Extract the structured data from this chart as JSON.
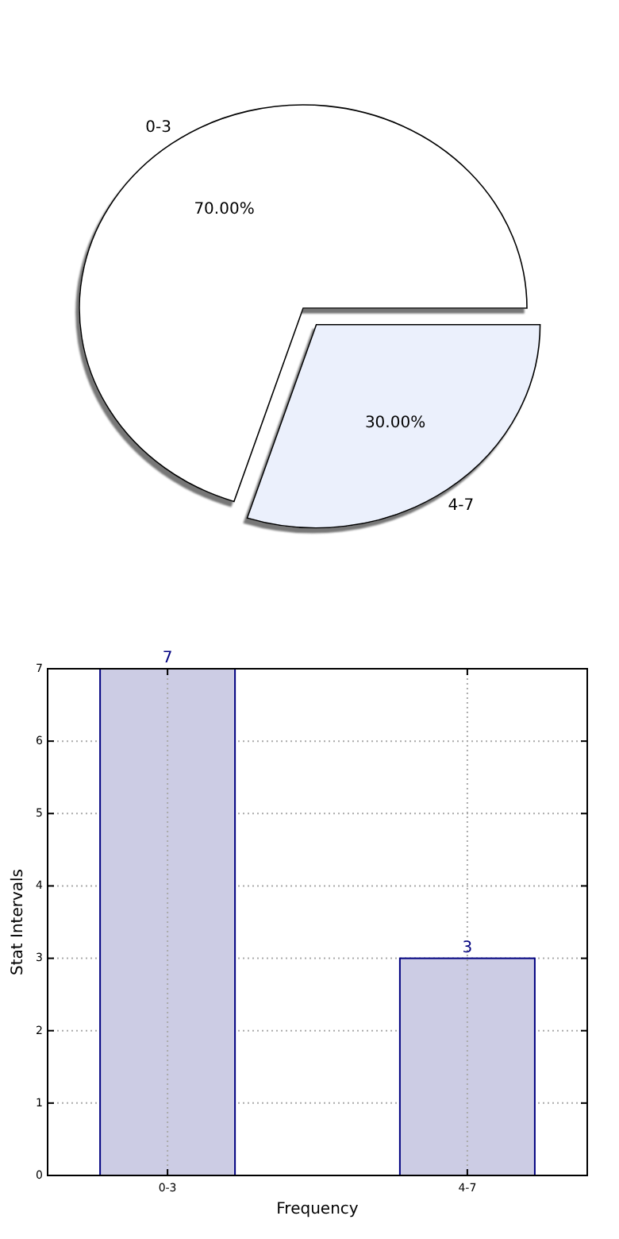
{
  "chart_data": [
    {
      "type": "pie",
      "categories": [
        "0-3",
        "4-7"
      ],
      "values": [
        70,
        30
      ],
      "colors": [
        "#ffffff",
        "#ebf0fc"
      ],
      "value_labels": [
        "70.00%",
        "30.00%"
      ]
    },
    {
      "type": "bar",
      "categories": [
        "0-3",
        "4-7"
      ],
      "values": [
        7,
        3
      ],
      "color": "#cccce4",
      "xlabel": "Frequency",
      "ylabel": "Stat Intervals",
      "ylim": [
        0,
        7
      ],
      "yticks": [
        0,
        1,
        2,
        3,
        4,
        5,
        6,
        7
      ],
      "grid": true,
      "data_labels": true
    }
  ]
}
